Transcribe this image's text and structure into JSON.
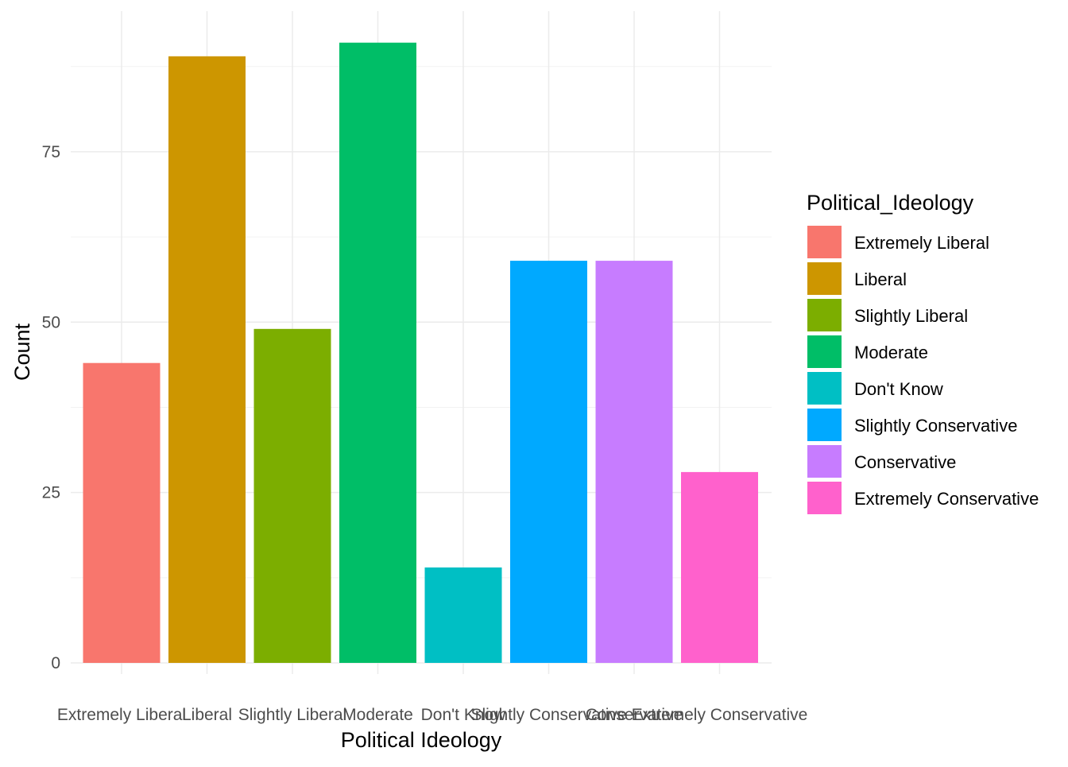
{
  "chart_data": {
    "type": "bar",
    "xlabel": "Political Ideology",
    "ylabel": "Count",
    "ylim": [
      0,
      93
    ],
    "yticks": [
      0,
      25,
      50,
      75
    ],
    "grid": true,
    "legend": {
      "title": "Political_Ideology",
      "placement": "right"
    },
    "categories": [
      "Extremely Liberal",
      "Liberal",
      "Slightly Liberal",
      "Moderate",
      "Don't Know",
      "Slightly Conservative",
      "Conservative",
      "Extremely Conservative"
    ],
    "values": [
      44,
      89,
      49,
      91,
      14,
      59,
      59,
      28
    ],
    "colors": [
      "#F8766D",
      "#CD9600",
      "#7CAE00",
      "#00BE67",
      "#00BFC4",
      "#00A9FF",
      "#C77CFF",
      "#FF61CC"
    ]
  }
}
